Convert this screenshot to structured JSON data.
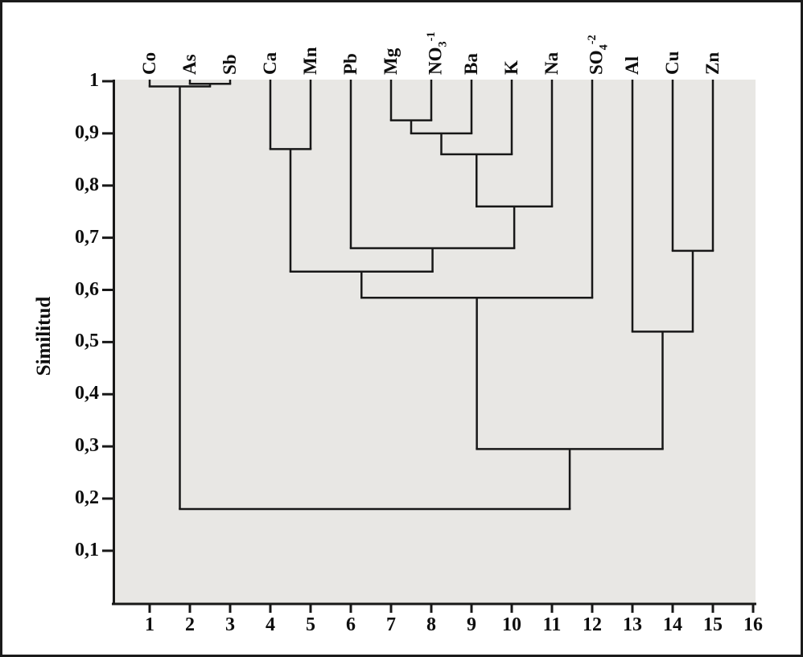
{
  "figure": {
    "background_color": "#ffffff",
    "plot_background_color": "#e8e7e4",
    "line_color": "#181818",
    "frame_color": "#1b1b1b"
  },
  "chart_data": {
    "type": "dendrogram",
    "title": "",
    "ylabel": "Similitud",
    "orientation": "leaves on top, similarity axis vertical decreasing downward",
    "grid": "off",
    "y_axis": {
      "range": [
        0.02,
        1.0
      ],
      "ticks": [
        {
          "label": "1",
          "value": 1.0
        },
        {
          "label": "0,9",
          "value": 0.9
        },
        {
          "label": "0,8",
          "value": 0.8
        },
        {
          "label": "0,7",
          "value": 0.7
        },
        {
          "label": "0,6",
          "value": 0.6
        },
        {
          "label": "0,5",
          "value": 0.5
        },
        {
          "label": "0,4",
          "value": 0.4
        },
        {
          "label": "0,3",
          "value": 0.3
        },
        {
          "label": "0,2",
          "value": 0.2
        },
        {
          "label": "0,1",
          "value": 0.1
        }
      ]
    },
    "x_axis": {
      "ticks": [
        "1",
        "2",
        "3",
        "4",
        "5",
        "6",
        "7",
        "8",
        "9",
        "10",
        "11",
        "12",
        "13",
        "14",
        "15",
        "16"
      ]
    },
    "leaves": [
      {
        "label": "Co",
        "x": 1
      },
      {
        "label": "As",
        "x": 2
      },
      {
        "label": "Sb",
        "x": 3
      },
      {
        "label": "Ca",
        "x": 4
      },
      {
        "label": "Mn",
        "x": 5
      },
      {
        "label": "Pb",
        "x": 6
      },
      {
        "label": "Mg",
        "x": 7
      },
      {
        "label": "NO",
        "sub": "3",
        "sup": "-1",
        "x": 8
      },
      {
        "label": "Ba",
        "x": 9
      },
      {
        "label": "K",
        "x": 10
      },
      {
        "label": "Na",
        "x": 11
      },
      {
        "label": "SO",
        "sub": "4",
        "sup": "-2",
        "x": 12
      },
      {
        "label": "Al",
        "x": 13
      },
      {
        "label": "Cu",
        "x": 14
      },
      {
        "label": "Zn",
        "x": 15
      }
    ],
    "merges": [
      {
        "id": "C0",
        "a": "L1",
        "b": "L2",
        "height": 0.995
      },
      {
        "id": "C1",
        "a": "L0",
        "b": "C0",
        "height": 0.99
      },
      {
        "id": "C2",
        "a": "L3",
        "b": "L4",
        "height": 0.87
      },
      {
        "id": "C3",
        "a": "L6",
        "b": "L7",
        "height": 0.925
      },
      {
        "id": "C4",
        "a": "C3",
        "b": "L8",
        "height": 0.9
      },
      {
        "id": "C5",
        "a": "C4",
        "b": "L9",
        "height": 0.86
      },
      {
        "id": "C6",
        "a": "C5",
        "b": "L10",
        "height": 0.76
      },
      {
        "id": "C7",
        "a": "L5",
        "b": "C6",
        "height": 0.68
      },
      {
        "id": "C8",
        "a": "C2",
        "b": "C7",
        "height": 0.635
      },
      {
        "id": "C9",
        "a": "C8",
        "b": "L11",
        "height": 0.585
      },
      {
        "id": "C10",
        "a": "L13",
        "b": "L14",
        "height": 0.675
      },
      {
        "id": "C11",
        "a": "L12",
        "b": "C10",
        "height": 0.52
      },
      {
        "id": "C12",
        "a": "C9",
        "b": "C11",
        "height": 0.295
      },
      {
        "id": "C13",
        "a": "C1",
        "b": "C12",
        "height": 0.18
      }
    ]
  }
}
